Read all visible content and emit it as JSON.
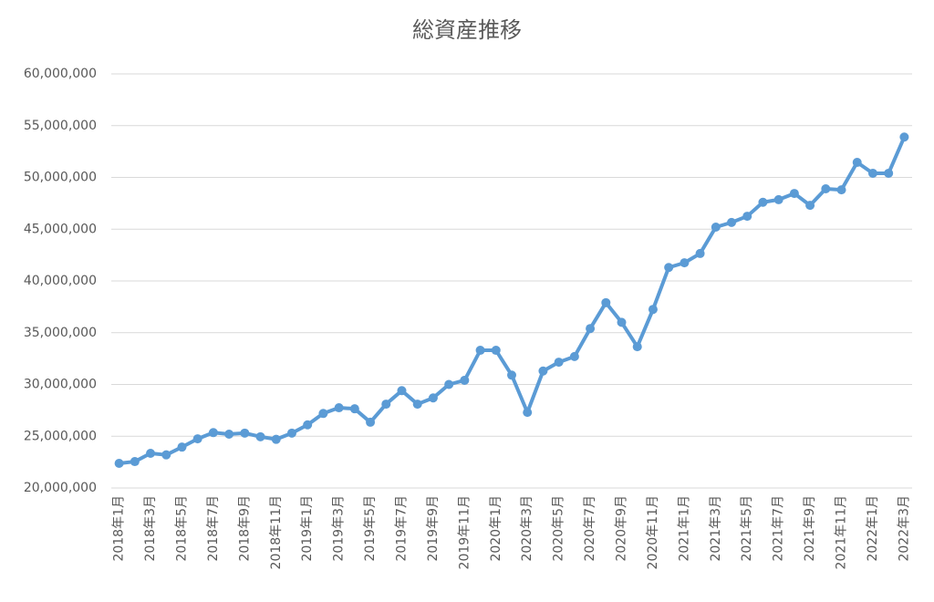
{
  "chart_data": {
    "type": "line",
    "title": "総資産推移",
    "categories": [
      "2018年1月",
      null,
      "2018年3月",
      null,
      "2018年5月",
      null,
      "2018年7月",
      null,
      "2018年9月",
      null,
      "2018年11月",
      null,
      "2019年1月",
      null,
      "2019年3月",
      null,
      "2019年5月",
      null,
      "2019年7月",
      null,
      "2019年9月",
      null,
      "2019年11月",
      null,
      "2020年1月",
      null,
      "2020年3月",
      null,
      "2020年5月",
      null,
      "2020年7月",
      null,
      "2020年9月",
      null,
      "2020年11月",
      null,
      "2021年1月",
      null,
      "2021年3月",
      null,
      "2021年5月",
      null,
      "2021年7月",
      null,
      "2021年9月",
      null,
      "2021年11月",
      null,
      "2022年1月",
      null,
      "2022年3月"
    ],
    "series": [
      {
        "color": "#5b9bd5",
        "values": [
          22380000,
          22550000,
          23350000,
          23200000,
          23950000,
          24750000,
          25350000,
          25200000,
          25300000,
          24950000,
          24700000,
          25300000,
          26100000,
          27200000,
          27750000,
          27650000,
          26350000,
          28100000,
          29400000,
          28100000,
          28700000,
          30000000,
          30400000,
          33300000,
          33300000,
          30900000,
          27300000,
          31300000,
          32150000,
          32700000,
          35400000,
          37900000,
          36000000,
          33650000,
          37250000,
          41300000,
          41750000,
          42650000,
          45200000,
          45650000,
          46250000,
          47600000,
          47850000,
          48450000,
          47300000,
          48900000,
          48800000,
          51450000,
          50400000,
          50400000,
          53900000
        ]
      }
    ],
    "ylim": [
      20000000,
      60000000
    ],
    "yticks": [
      {
        "value": 20000000,
        "label": "20,000,000"
      },
      {
        "value": 25000000,
        "label": "25,000,000"
      },
      {
        "value": 30000000,
        "label": "30,000,000"
      },
      {
        "value": 35000000,
        "label": "35,000,000"
      },
      {
        "value": 40000000,
        "label": "40,000,000"
      },
      {
        "value": 45000000,
        "label": "45,000,000"
      },
      {
        "value": 50000000,
        "label": "50,000,000"
      },
      {
        "value": 55000000,
        "label": "55,000,000"
      },
      {
        "value": 60000000,
        "label": "60,000,000"
      }
    ],
    "grid": true
  }
}
